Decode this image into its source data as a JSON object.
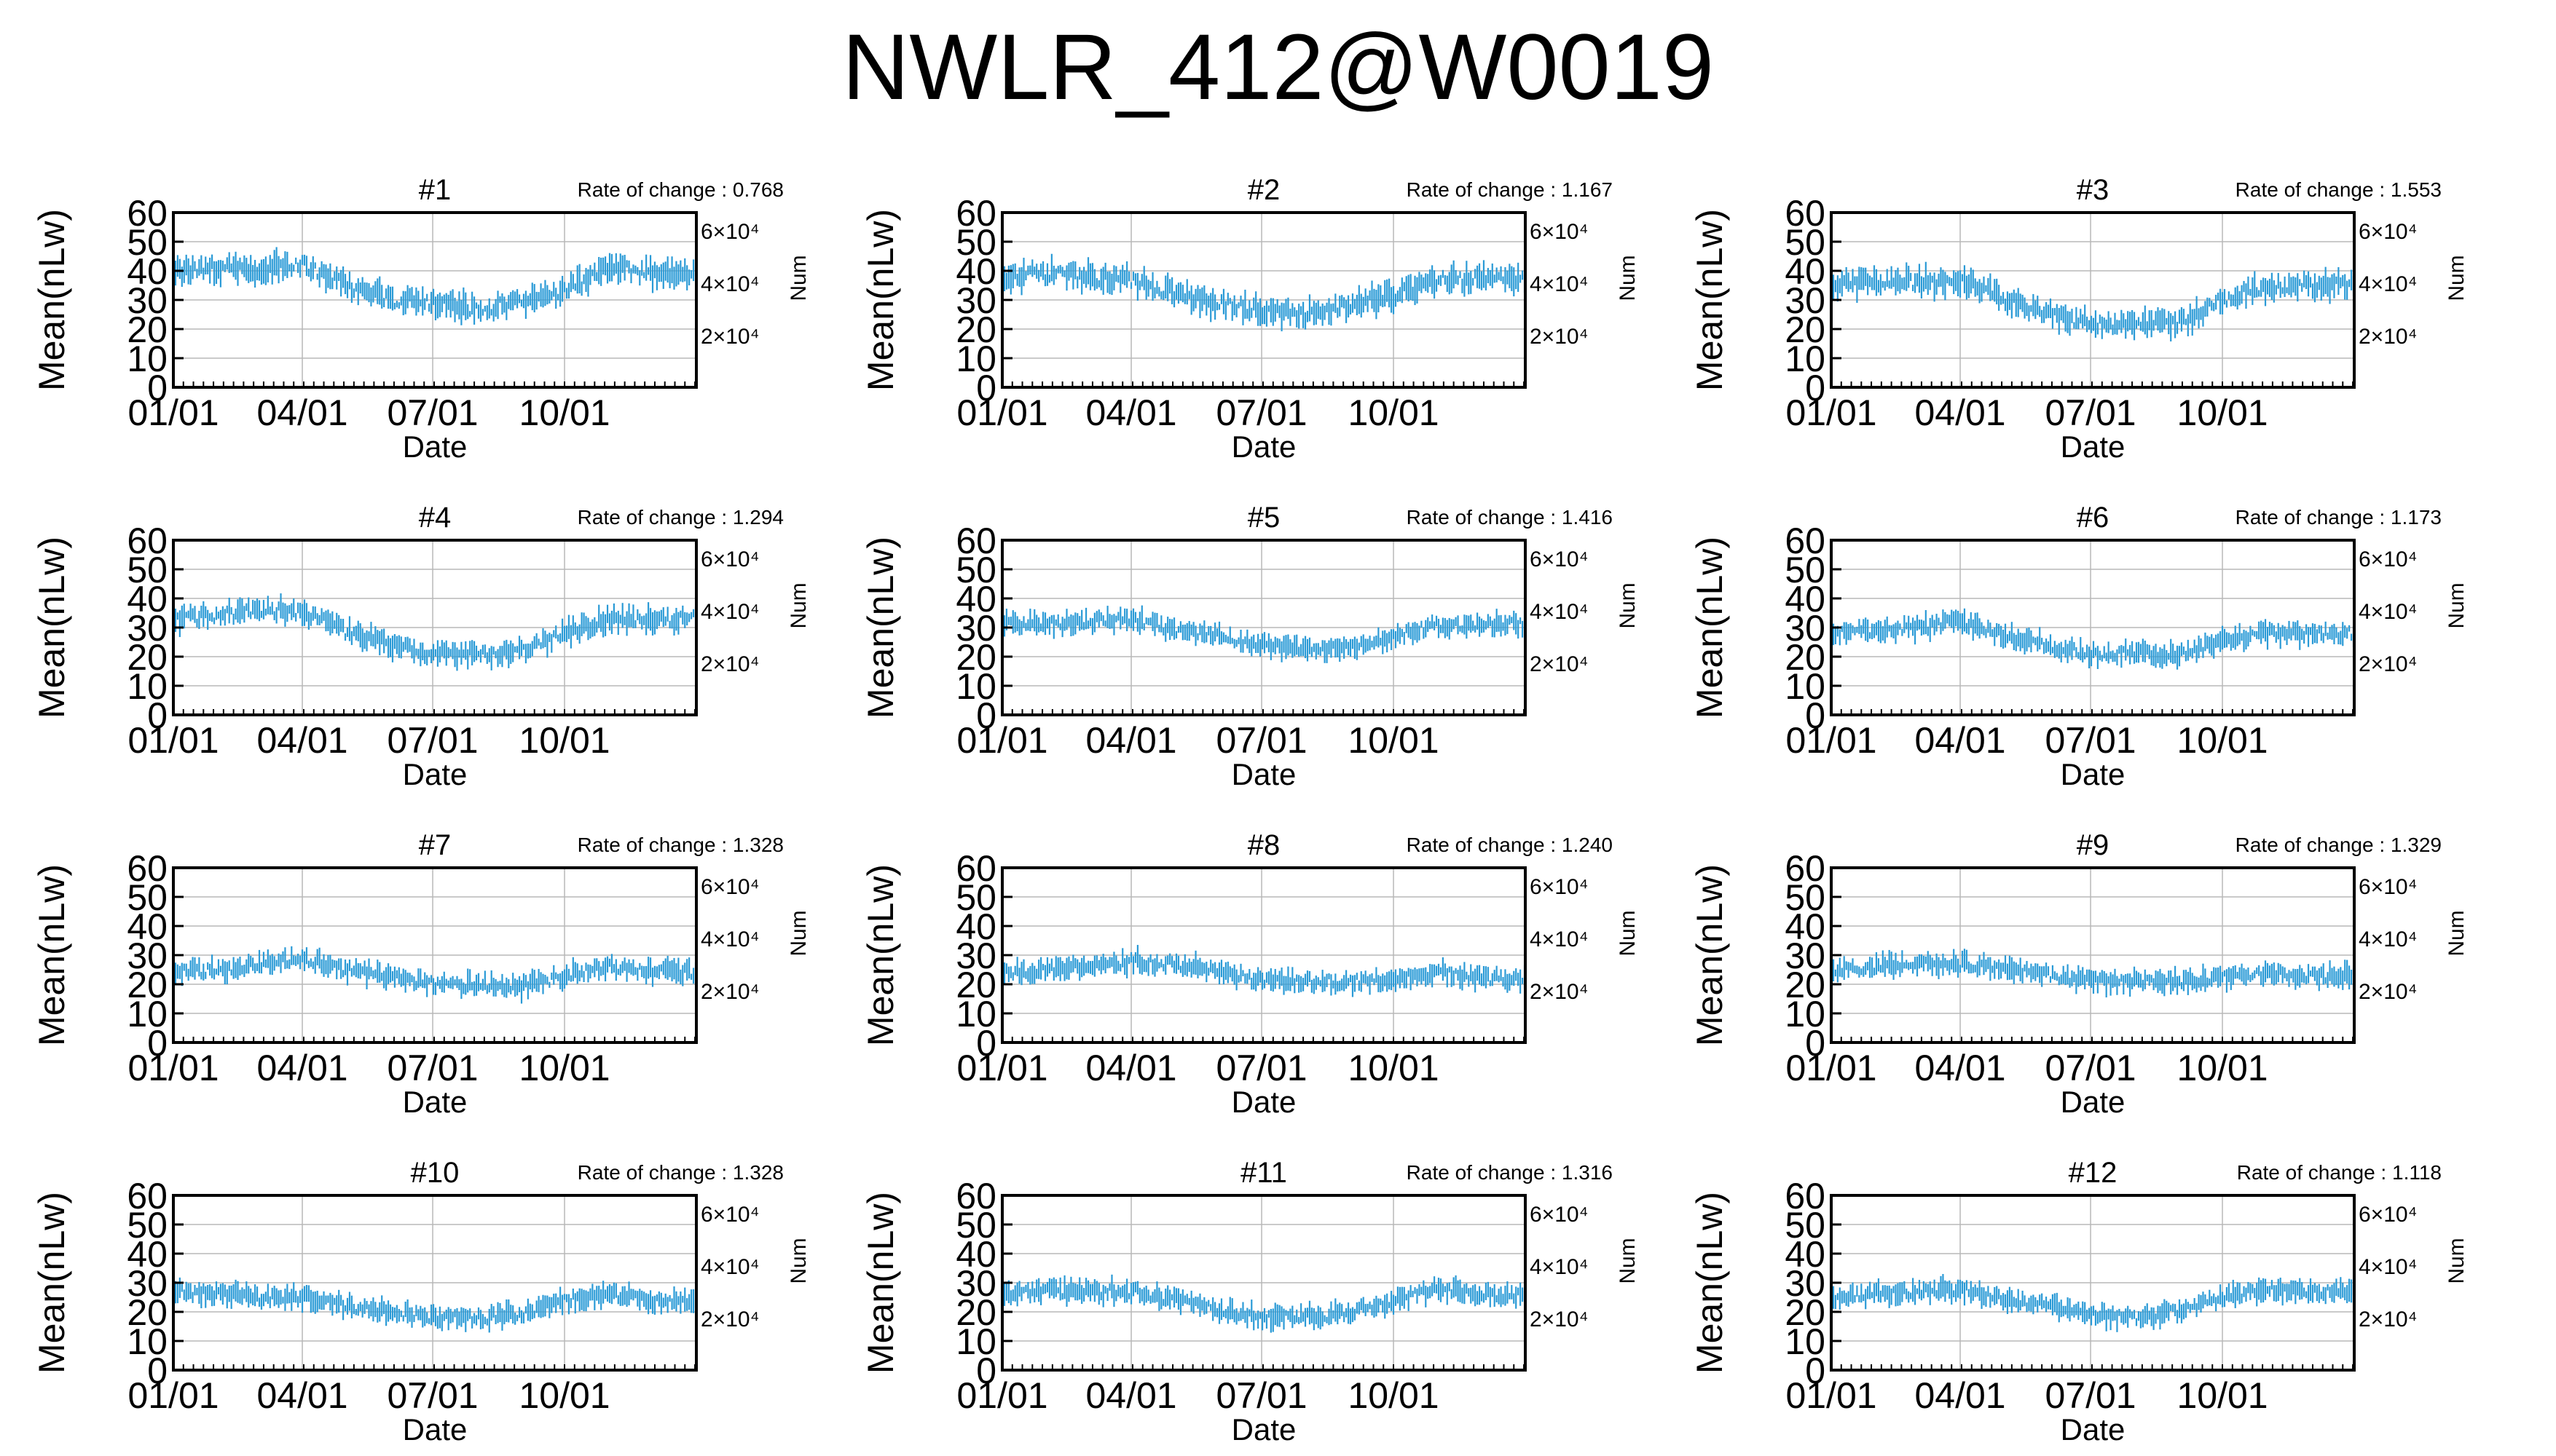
{
  "title": "NWLR_412@W0019",
  "colors": {
    "series": "#2a9ad6",
    "grid": "#b8b8b8",
    "axis": "#000000"
  },
  "shared": {
    "ylabel": "Mean(nLw)",
    "xlabel": "Date",
    "y2label": "Num",
    "rate_prefix": "Rate of change : ",
    "yticks": [
      "0",
      "10",
      "20",
      "30",
      "40",
      "50",
      "60"
    ],
    "xticks": [
      "01/01",
      "04/01",
      "07/01",
      "10/01"
    ],
    "y2ticks": [
      "2×10⁴",
      "4×10⁴",
      "6×10⁴"
    ]
  },
  "chart_data": [
    {
      "type": "line",
      "title": "#1",
      "rate": "0.768",
      "ylim": [
        0,
        60
      ],
      "grid": true,
      "months": [
        40,
        41,
        41,
        42,
        35,
        30,
        29,
        27,
        29,
        33,
        41,
        39
      ],
      "noise": 4.5
    },
    {
      "type": "line",
      "title": "#2",
      "rate": "1.167",
      "ylim": [
        0,
        60
      ],
      "grid": true,
      "months": [
        38,
        39,
        38,
        37,
        32,
        29,
        26,
        25,
        28,
        32,
        37,
        37
      ],
      "noise": 4.5
    },
    {
      "type": "line",
      "title": "#3",
      "rate": "1.553",
      "ylim": [
        0,
        60
      ],
      "grid": true,
      "months": [
        35,
        36,
        36,
        37,
        30,
        25,
        22,
        22,
        22,
        30,
        35,
        35
      ],
      "noise": 4.5
    },
    {
      "type": "line",
      "title": "#4",
      "rate": "1.294",
      "ylim": [
        0,
        60
      ],
      "grid": true,
      "months": [
        33,
        34,
        36,
        35,
        28,
        24,
        21,
        21,
        22,
        28,
        33,
        33
      ],
      "noise": 4
    },
    {
      "type": "line",
      "title": "#5",
      "rate": "1.416",
      "ylim": [
        0,
        60
      ],
      "grid": true,
      "months": [
        31,
        31,
        32,
        33,
        29,
        27,
        24,
        22,
        23,
        27,
        31,
        31
      ],
      "noise": 3.5
    },
    {
      "type": "line",
      "title": "#6",
      "rate": "1.173",
      "ylim": [
        0,
        60
      ],
      "grid": true,
      "months": [
        28,
        29,
        30,
        32,
        27,
        24,
        21,
        21,
        21,
        25,
        28,
        28
      ],
      "noise": 3.5
    },
    {
      "type": "line",
      "title": "#7",
      "rate": "1.328",
      "ylim": [
        0,
        60
      ],
      "grid": true,
      "months": [
        24,
        25,
        27,
        29,
        25,
        22,
        20,
        20,
        19,
        23,
        26,
        24
      ],
      "noise": 3.5
    },
    {
      "type": "line",
      "title": "#8",
      "rate": "1.240",
      "ylim": [
        0,
        60
      ],
      "grid": true,
      "months": [
        24,
        25,
        26,
        28,
        27,
        24,
        21,
        21,
        21,
        22,
        24,
        22
      ],
      "noise": 3.5
    },
    {
      "type": "line",
      "title": "#9",
      "rate": "1.329",
      "ylim": [
        0,
        60
      ],
      "grid": true,
      "months": [
        25,
        26,
        27,
        27,
        25,
        23,
        21,
        21,
        21,
        22,
        24,
        23
      ],
      "noise": 3.5
    },
    {
      "type": "line",
      "title": "#10",
      "rate": "1.328",
      "ylim": [
        0,
        60
      ],
      "grid": true,
      "months": [
        27,
        26,
        25,
        25,
        22,
        20,
        18,
        18,
        19,
        24,
        26,
        24
      ],
      "noise": 3.5
    },
    {
      "type": "line",
      "title": "#11",
      "rate": "1.316",
      "ylim": [
        0,
        60
      ],
      "grid": true,
      "months": [
        26,
        27,
        27,
        27,
        24,
        21,
        18,
        18,
        20,
        24,
        28,
        26
      ],
      "noise": 3.5
    },
    {
      "type": "line",
      "title": "#12",
      "rate": "1.118",
      "ylim": [
        0,
        60
      ],
      "grid": true,
      "months": [
        25,
        26,
        27,
        28,
        24,
        22,
        19,
        18,
        20,
        25,
        28,
        27
      ],
      "noise": 3.5
    }
  ]
}
